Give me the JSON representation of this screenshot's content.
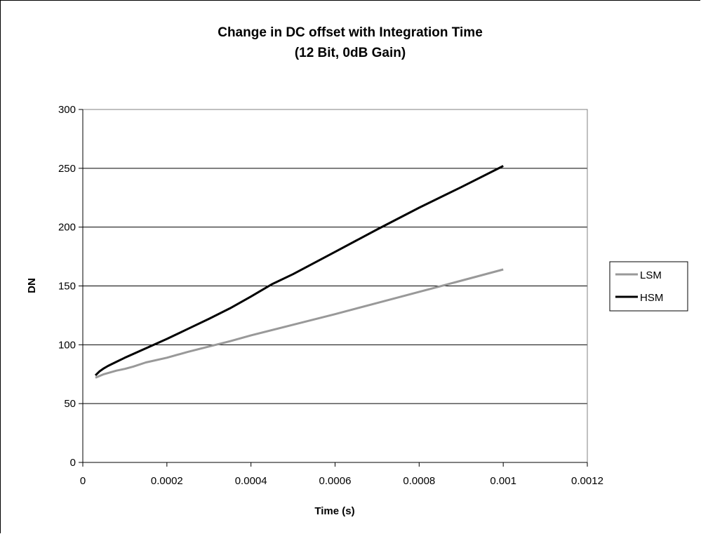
{
  "chart_data": {
    "type": "line",
    "title": "Change in DC offset with Integration Time",
    "subtitle": "(12 Bit, 0dB Gain)",
    "xlabel": "Time (s)",
    "ylabel": "DN",
    "xlim": [
      0,
      0.0012
    ],
    "ylim": [
      0,
      300
    ],
    "x_ticks": [
      "0",
      "0.0002",
      "0.0004",
      "0.0006",
      "0.0008",
      "0.001",
      "0.0012"
    ],
    "y_ticks": [
      "0",
      "50",
      "100",
      "150",
      "200",
      "250",
      "300"
    ],
    "grid": "horizontal",
    "legend_position": "right",
    "series": [
      {
        "name": "LSM",
        "color": "#999999",
        "x": [
          3e-05,
          5e-05,
          8e-05,
          0.0001,
          0.00012,
          0.00015,
          0.0002,
          0.00025,
          0.0003,
          0.00035,
          0.0004,
          0.0005,
          0.0006,
          0.0007,
          0.0008,
          0.0009,
          0.001
        ],
        "y": [
          72,
          75,
          78,
          79.5,
          81.5,
          85,
          89,
          94,
          98.5,
          103,
          108,
          117,
          126,
          135.5,
          145,
          154.5,
          164
        ]
      },
      {
        "name": "HSM",
        "color": "#000000",
        "x": [
          3e-05,
          4e-05,
          5e-05,
          6e-05,
          8e-05,
          0.0001,
          0.00015,
          0.0002,
          0.00025,
          0.0003,
          0.00035,
          0.0004,
          0.00045,
          0.0005,
          0.0006,
          0.0007,
          0.0008,
          0.0009,
          0.001
        ],
        "y": [
          74,
          77.5,
          80,
          82,
          85.5,
          89,
          97,
          105,
          113.5,
          122,
          131,
          141,
          151.5,
          160,
          179,
          198,
          216.5,
          234,
          252
        ]
      }
    ]
  }
}
